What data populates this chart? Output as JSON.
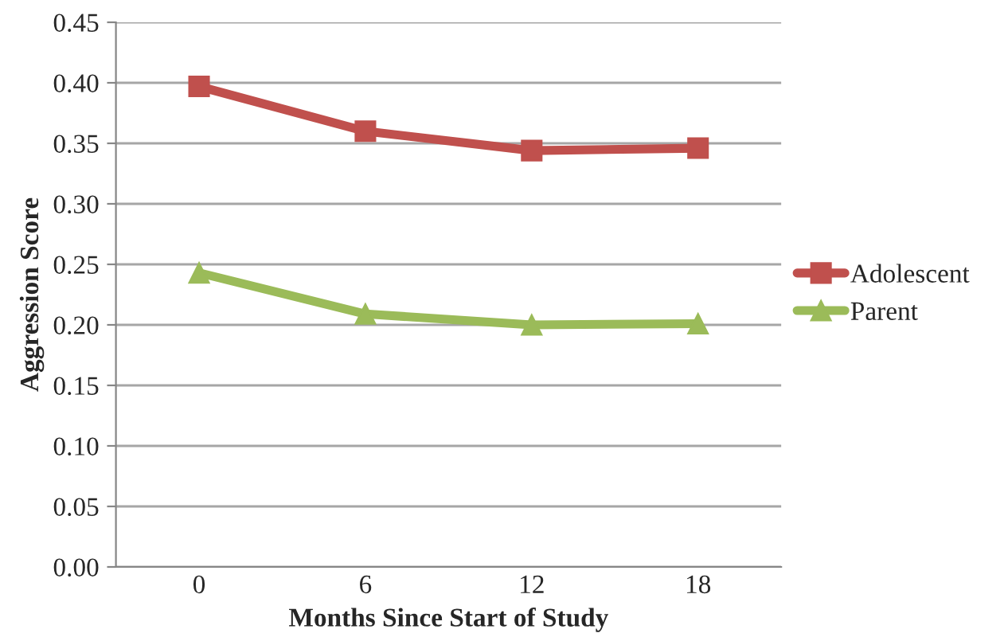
{
  "chart_data": {
    "type": "line",
    "xlabel": "Months Since Start of Study",
    "ylabel": "Aggression Score",
    "categories": [
      "0",
      "6",
      "12",
      "18"
    ],
    "series": [
      {
        "name": "Adolescent",
        "color": "#c0504d",
        "marker": "square",
        "values": [
          0.397,
          0.36,
          0.344,
          0.346
        ]
      },
      {
        "name": "Parent",
        "color": "#9bbb59",
        "marker": "triangle",
        "values": [
          0.243,
          0.209,
          0.2,
          0.201
        ]
      }
    ],
    "ylim": [
      0,
      0.45
    ],
    "yticks": [
      {
        "value": 0,
        "label": "0.00"
      },
      {
        "value": 0.05,
        "label": "0.05"
      },
      {
        "value": 0.1,
        "label": "0.10"
      },
      {
        "value": 0.15,
        "label": "0.15"
      },
      {
        "value": 0.2,
        "label": "0.20"
      },
      {
        "value": 0.25,
        "label": "0.25"
      },
      {
        "value": 0.3,
        "label": "0.30"
      },
      {
        "value": 0.35,
        "label": "0.35"
      },
      {
        "value": 0.4,
        "label": "0.40"
      },
      {
        "value": 0.45,
        "label": "0.45"
      }
    ],
    "grid": "y",
    "legend": "right"
  }
}
